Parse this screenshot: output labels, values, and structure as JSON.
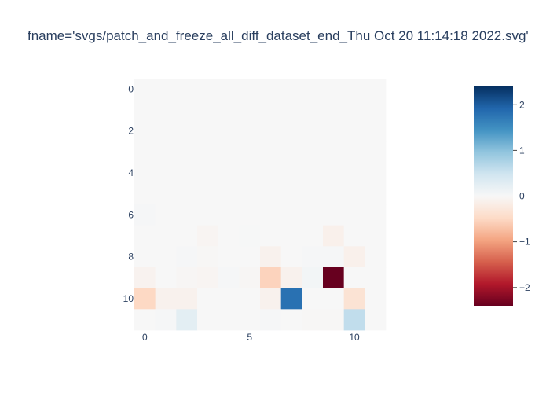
{
  "chart_data": {
    "type": "heatmap",
    "title": "fname='svgs/patch_and_freeze_all_diff_dataset_end_Thu Oct 20 11:14:18 2022.svg'",
    "xlabel": "",
    "ylabel": "",
    "x_ticks": [
      0,
      5,
      10
    ],
    "y_ticks": [
      0,
      2,
      4,
      6,
      8,
      10
    ],
    "xlim": [
      -0.5,
      11.5
    ],
    "ylim": [
      11.5,
      -0.5
    ],
    "y_reversed": true,
    "colorscale": "RdBu",
    "colorbar_range": [
      -2.4,
      2.4
    ],
    "colorbar_ticks": [
      2,
      1,
      0,
      -1,
      -2
    ],
    "colorbar_tick_labels": [
      "2",
      "1",
      "0",
      "−1",
      "−2"
    ],
    "z": [
      [
        0,
        0,
        0,
        0,
        0,
        0,
        0,
        0,
        0,
        0,
        0,
        0
      ],
      [
        0,
        0,
        0,
        0,
        0,
        0,
        0,
        0,
        0,
        0,
        0,
        0
      ],
      [
        0,
        0,
        0,
        0,
        0,
        0,
        0,
        0,
        0,
        0,
        0,
        0
      ],
      [
        0,
        0,
        0,
        0,
        0,
        0,
        0,
        0,
        0,
        0,
        0,
        0
      ],
      [
        0,
        0,
        0,
        0,
        0,
        0,
        0,
        0,
        0,
        0,
        0,
        0
      ],
      [
        0,
        0,
        0,
        0,
        0,
        0,
        0,
        0,
        0,
        0,
        0,
        0
      ],
      [
        0.02,
        0,
        0,
        0,
        0,
        0,
        0,
        0,
        0,
        0,
        0,
        0
      ],
      [
        0,
        0,
        0,
        -0.05,
        0,
        0.01,
        0,
        0,
        0,
        -0.12,
        0,
        0
      ],
      [
        0,
        0,
        0.03,
        -0.02,
        0,
        0,
        -0.1,
        0,
        0.02,
        0.02,
        -0.12,
        0
      ],
      [
        -0.08,
        0,
        -0.03,
        -0.05,
        0.03,
        -0.03,
        -0.55,
        -0.1,
        0.06,
        -2.4,
        0,
        0
      ],
      [
        -0.5,
        -0.1,
        -0.1,
        0,
        0,
        0,
        -0.1,
        1.8,
        0,
        0,
        -0.35,
        0
      ],
      [
        0,
        0.02,
        0.25,
        0,
        0,
        0,
        0.02,
        0,
        -0.02,
        -0.02,
        0.6,
        0
      ]
    ]
  }
}
